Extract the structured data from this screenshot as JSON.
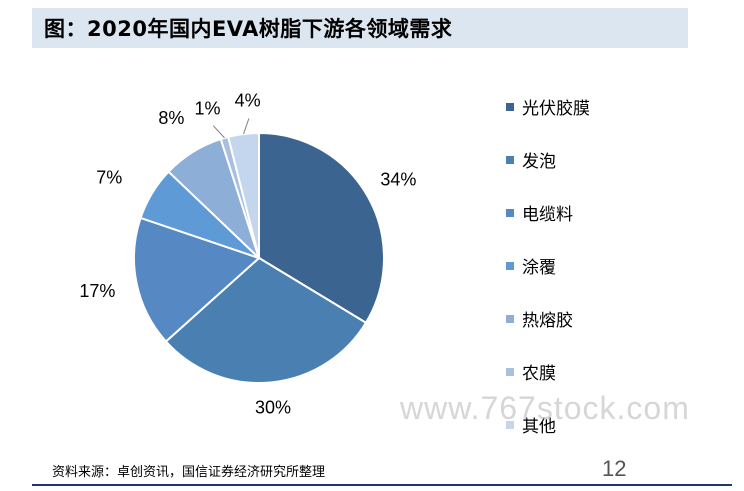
{
  "title": "图：2020年国内EVA树脂下游各领域需求",
  "chart_data": {
    "type": "pie",
    "categories": [
      "光伏胶膜",
      "发泡",
      "电缆料",
      "涂覆",
      "热熔胶",
      "农膜",
      "其他"
    ],
    "values": [
      34,
      30,
      17,
      7,
      8,
      1,
      4
    ],
    "labels": [
      "34%",
      "30%",
      "17%",
      "7%",
      "8%",
      "1%",
      "4%"
    ],
    "colors": [
      "#3b6590",
      "#4a7fb2",
      "#5689c3",
      "#5d9ad6",
      "#8daed6",
      "#a7c0e0",
      "#c4d6ee"
    ],
    "start_angle_deg": 0,
    "direction": "clockwise",
    "legend_position": "right"
  },
  "watermark": "www.767stock.com",
  "source": "资料来源：卓创资讯，国信证券经济研究所整理",
  "page_number": "12"
}
